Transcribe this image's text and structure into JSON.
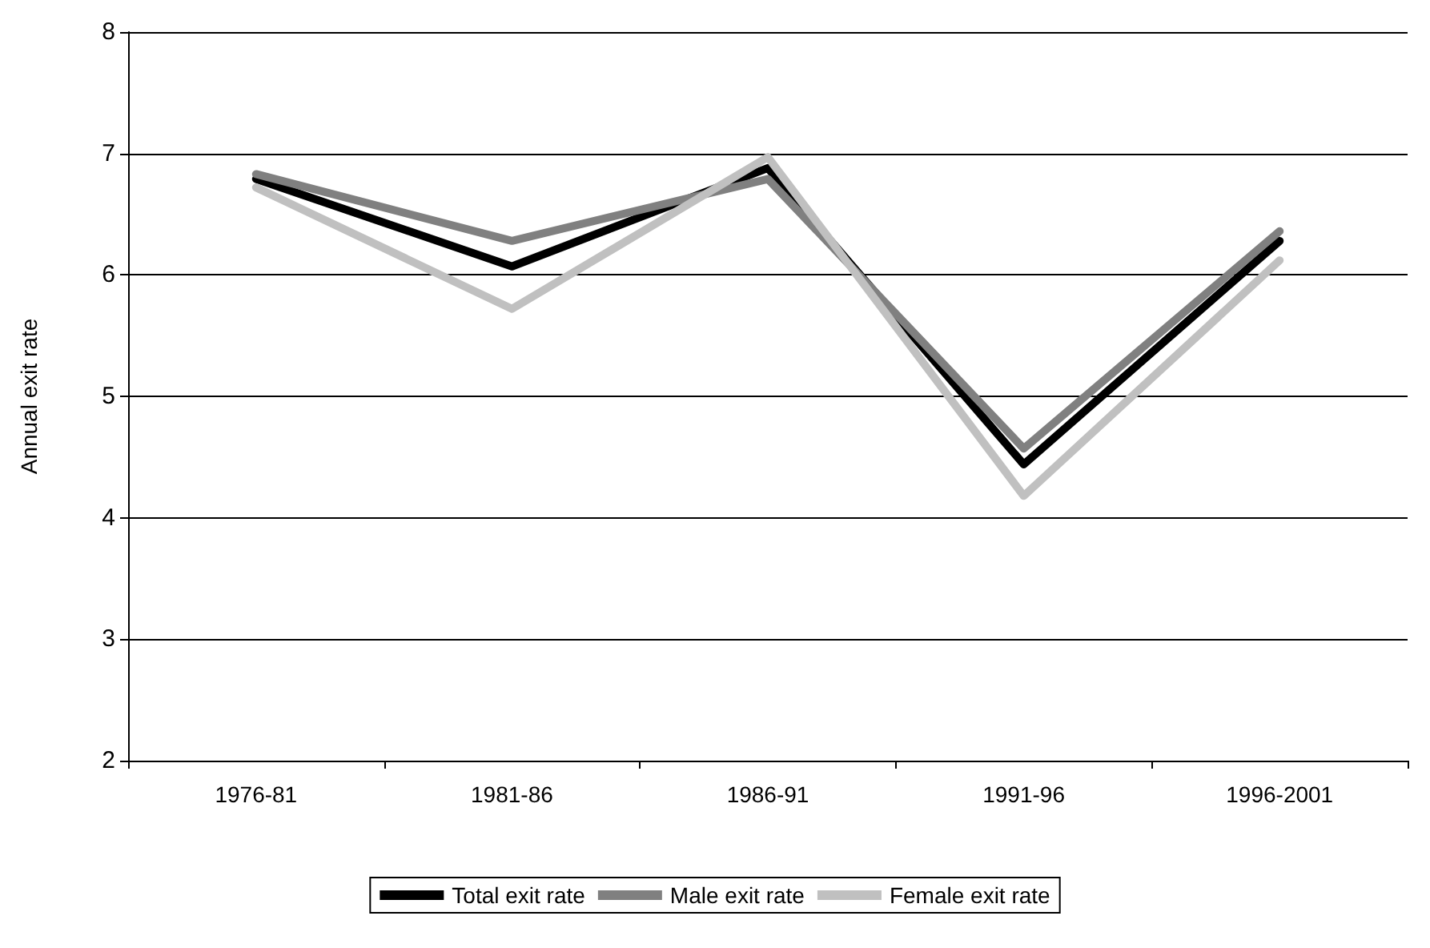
{
  "chart_data": {
    "type": "line",
    "ylabel": "Annual exit rate",
    "categories": [
      "1976-81",
      "1981-86",
      "1986-91",
      "1991-96",
      "1996-2001"
    ],
    "series": [
      {
        "name": "Total exit rate",
        "color": "#000000",
        "values": [
          6.79,
          6.07,
          6.88,
          4.44,
          6.28
        ]
      },
      {
        "name": "Male exit rate",
        "color": "#808080",
        "values": [
          6.83,
          6.28,
          6.79,
          4.57,
          6.36
        ]
      },
      {
        "name": "Female exit rate",
        "color": "#c0c0c0",
        "values": [
          6.72,
          5.72,
          6.97,
          4.18,
          6.12
        ]
      }
    ],
    "ylim": [
      2,
      8
    ],
    "yticks": [
      2,
      3,
      4,
      5,
      6,
      7,
      8
    ],
    "grid": "y",
    "legend": "bottom",
    "marker": "none",
    "line_style": "solid"
  }
}
